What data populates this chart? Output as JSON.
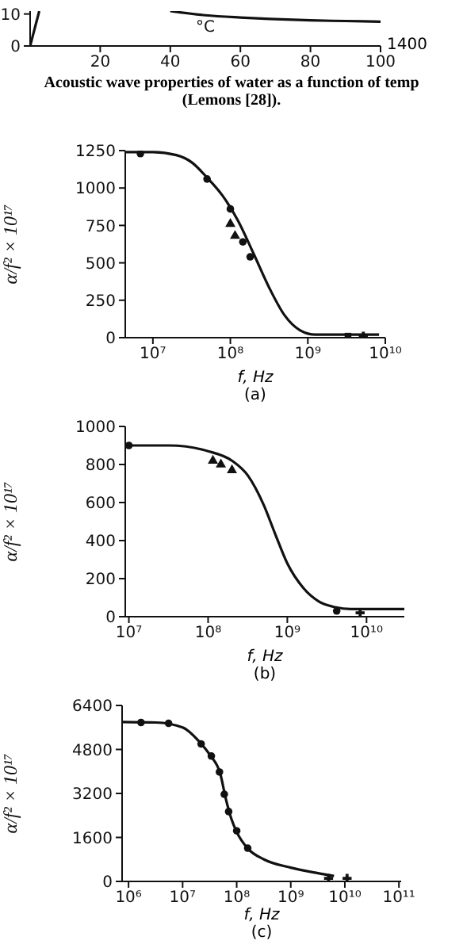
{
  "chart_data": [
    {
      "type": "line",
      "xlabel": "°C",
      "xlim": [
        0,
        100
      ],
      "xticks": [
        20,
        40,
        60,
        80,
        100
      ],
      "ylim": [
        0,
        10.9
      ],
      "yticks": [
        0,
        10
      ],
      "annotations": [
        "1400",
        "Acoustic wave properties of water as a function of temp",
        "(Lemons [28])."
      ],
      "series": [
        {
          "color": "#111111",
          "x": [
            0,
            2.6
          ],
          "values": [
            0,
            10.9
          ],
          "marker": "none"
        },
        {
          "color": "#111111",
          "x": [
            40,
            50,
            60,
            70,
            80,
            90,
            100
          ],
          "values": [
            10.9,
            9.6,
            8.9,
            8.4,
            8.0,
            7.8,
            7.6
          ],
          "marker": "none"
        }
      ]
    },
    {
      "type": "line",
      "log": "x",
      "xlabel": "f, Hz",
      "ylabel": "α/f² × 10¹⁷",
      "subtitle": "(a)",
      "xlim": [
        4400000.0,
        10000000000.0
      ],
      "xticks": [
        {
          "value": 10000000.0,
          "label": "10⁷"
        },
        {
          "value": 100000000.0,
          "label": "10⁸"
        },
        {
          "value": 1000000000.0,
          "label": "10⁹"
        },
        {
          "value": 10000000000.0,
          "label": "10¹⁰"
        }
      ],
      "ylim": [
        0,
        1250
      ],
      "yticks": [
        0,
        250,
        500,
        750,
        1000,
        1250
      ],
      "series": [
        {
          "color": "#111111",
          "marker": "none",
          "x": [
            4400000.0,
            10000000.0,
            20000000.0,
            32000000.0,
            50000000.0,
            79000000.0,
            126000000.0,
            200000000.0,
            320000000.0,
            500000000.0,
            790000000.0,
            1260000000.0,
            3200000000.0,
            8300000000.0
          ],
          "values": [
            1240,
            1240,
            1220,
            1170,
            1070,
            950,
            780,
            560,
            330,
            150,
            50,
            20,
            20,
            20
          ]
        },
        {
          "type": "scatter",
          "color": "#111111",
          "marker": "circle",
          "x": [
            6900000.0,
            50000000.0,
            100000000.0,
            145000000.0,
            180000000.0
          ],
          "values": [
            1230,
            1060,
            860,
            640,
            540
          ]
        },
        {
          "type": "scatter",
          "color": "#111111",
          "marker": "triangle",
          "x": [
            100000000.0,
            115000000.0
          ],
          "values": [
            760,
            680
          ]
        },
        {
          "type": "scatter",
          "color": "#111111",
          "marker": "square",
          "x": [
            3300000000.0
          ],
          "values": [
            10
          ]
        },
        {
          "type": "scatter",
          "color": "#111111",
          "marker": "cross",
          "x": [
            5200000000.0
          ],
          "values": [
            10
          ]
        }
      ]
    },
    {
      "type": "line",
      "log": "x",
      "xlabel": "f, Hz",
      "ylabel": "α/f² × 10¹⁷",
      "subtitle": "(b)",
      "xlim": [
        9000000.0,
        30000000000.0
      ],
      "xticks": [
        {
          "value": 10000000.0,
          "label": "10⁷"
        },
        {
          "value": 100000000.0,
          "label": "10⁸"
        },
        {
          "value": 1000000000.0,
          "label": "10⁹"
        },
        {
          "value": 10000000000.0,
          "label": "10¹⁰"
        }
      ],
      "ylim": [
        0,
        1000
      ],
      "yticks": [
        0,
        200,
        400,
        600,
        800,
        1000
      ],
      "series": [
        {
          "color": "#111111",
          "marker": "none",
          "x": [
            9000000.0,
            32000000.0,
            100000000.0,
            200000000.0,
            320000000.0,
            500000000.0,
            710000000.0,
            1000000000.0,
            1600000000.0,
            2500000000.0,
            4000000000.0,
            6300000000.0,
            30000000000.0
          ],
          "values": [
            900,
            900,
            870,
            820,
            740,
            590,
            430,
            280,
            150,
            80,
            50,
            40,
            40
          ]
        },
        {
          "type": "scatter",
          "color": "#111111",
          "marker": "circle",
          "x": [
            10000000.0,
            4200000000.0
          ],
          "values": [
            900,
            30
          ]
        },
        {
          "type": "scatter",
          "color": "#111111",
          "marker": "triangle",
          "x": [
            115000000.0,
            145000000.0,
            200000000.0
          ],
          "values": [
            820,
            800,
            770
          ]
        },
        {
          "type": "scatter",
          "color": "#111111",
          "marker": "cross",
          "x": [
            8300000000.0
          ],
          "values": [
            20
          ]
        }
      ]
    },
    {
      "type": "line",
      "log": "x",
      "xlabel": "f, Hz",
      "ylabel": "α/f² × 10¹⁷",
      "subtitle": "(c)",
      "xlim": [
        760000.0,
        110000000000.0
      ],
      "xticks": [
        {
          "value": 1000000.0,
          "label": "10⁶"
        },
        {
          "value": 10000000.0,
          "label": "10⁷"
        },
        {
          "value": 100000000.0,
          "label": "10⁸"
        },
        {
          "value": 1000000000.0,
          "label": "10⁹"
        },
        {
          "value": 10000000000.0,
          "label": "10¹⁰"
        },
        {
          "value": 100000000000.0,
          "label": "10¹¹"
        }
      ],
      "ylim": [
        0,
        6400
      ],
      "yticks": [
        0,
        1600,
        3200,
        4800,
        6400
      ],
      "series": [
        {
          "color": "#111111",
          "marker": "none",
          "x": [
            760000.0,
            3200000.0,
            10000000.0,
            20000000.0,
            32000000.0,
            50000000.0,
            63000000.0,
            79000000.0,
            100000000.0,
            160000000.0,
            320000000.0,
            1000000000.0,
            3200000000.0,
            6300000000.0
          ],
          "values": [
            5800,
            5780,
            5600,
            5100,
            4600,
            3900,
            3000,
            2300,
            1800,
            1200,
            800,
            500,
            300,
            200
          ]
        },
        {
          "type": "scatter",
          "color": "#111111",
          "marker": "circle",
          "x": [
            1700000.0,
            5500000.0,
            22000000.0,
            34000000.0,
            48000000.0,
            59000000.0,
            71000000.0,
            100000000.0,
            160000000.0
          ],
          "values": [
            5780,
            5750,
            5000,
            4560,
            3980,
            3170,
            2540,
            1840,
            1210
          ]
        },
        {
          "type": "scatter",
          "color": "#111111",
          "marker": "cross",
          "x": [
            5000000000.0,
            11000000000.0
          ],
          "values": [
            110,
            110
          ]
        }
      ]
    }
  ]
}
